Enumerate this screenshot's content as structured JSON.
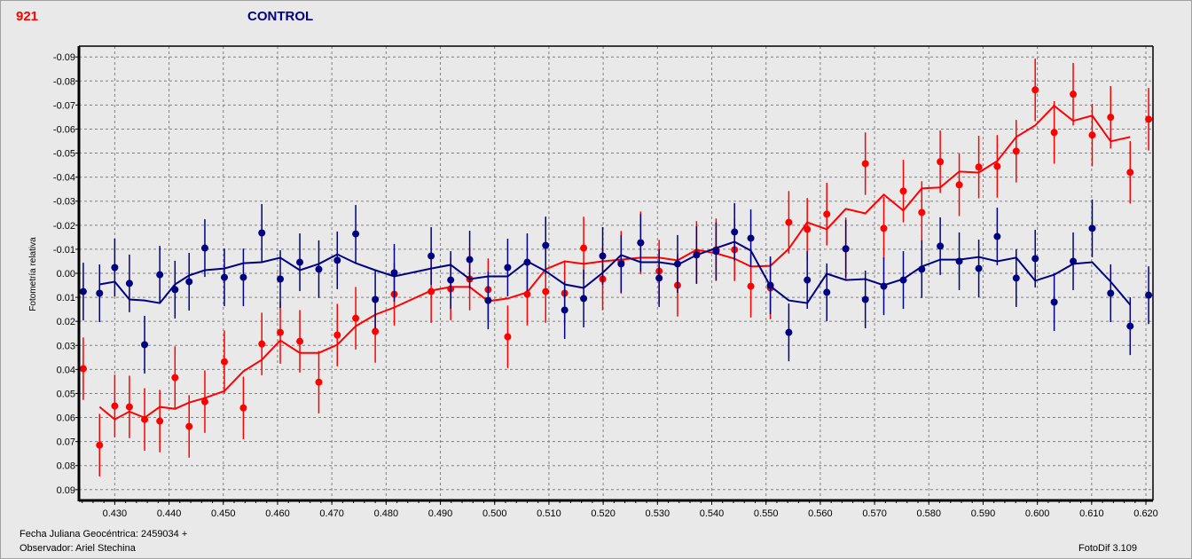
{
  "header": {
    "star_id": "921",
    "title": "CONTROL"
  },
  "footer": {
    "jd_label": "Fecha Juliana Geocéntrica: 2459034 +",
    "observer": "Observador: Ariel Stechina",
    "software": "FotoDif 3.109"
  },
  "colors": {
    "target": "#ff0000",
    "control": "#000080",
    "grid": "#808080"
  },
  "chart_data": {
    "type": "scatter",
    "title": "CONTROL",
    "xlabel": "Fecha Juliana Geocéntrica: 2459034 +",
    "ylabel": "Fotometría relativa",
    "xlim": [
      0.4234,
      0.6213
    ],
    "ylim": [
      0.0945,
      -0.0945
    ],
    "y_inverted": true,
    "grid": true,
    "xticks": [
      "0.430",
      "0.440",
      "0.450",
      "0.460",
      "0.470",
      "0.480",
      "0.490",
      "0.500",
      "0.510",
      "0.520",
      "0.530",
      "0.540",
      "0.550",
      "0.560",
      "0.570",
      "0.580",
      "0.590",
      "0.600",
      "0.610",
      "0.620"
    ],
    "yticks": [
      "-0.09",
      "-0.08",
      "-0.07",
      "-0.06",
      "-0.05",
      "-0.04",
      "-0.03",
      "-0.02",
      "-0.01",
      "0.00",
      "0.01",
      "0.02",
      "0.03",
      "0.04",
      "0.05",
      "0.06",
      "0.07",
      "0.08",
      "0.09"
    ],
    "x": [
      0.4242,
      0.4272,
      0.43,
      0.4327,
      0.4355,
      0.4383,
      0.4411,
      0.4437,
      0.4466,
      0.4502,
      0.4537,
      0.4571,
      0.4605,
      0.4641,
      0.4676,
      0.471,
      0.4744,
      0.478,
      0.4815,
      0.4883,
      0.4919,
      0.4954,
      0.4988,
      0.5024,
      0.506,
      0.5094,
      0.5129,
      0.5164,
      0.5199,
      0.5233,
      0.5269,
      0.5303,
      0.5337,
      0.5372,
      0.5408,
      0.5442,
      0.5472,
      0.5508,
      0.5542,
      0.5576,
      0.5612,
      0.5647,
      0.5683,
      0.5717,
      0.5753,
      0.5787,
      0.5821,
      0.5856,
      0.5892,
      0.5926,
      0.5961,
      0.5996,
      0.6031,
      0.6066,
      0.6101,
      0.6135,
      0.6171,
      0.6205
    ],
    "series": [
      {
        "name": "target",
        "color": "#ff0000",
        "error": 0.013,
        "values": [
          0.0397,
          0.0715,
          0.0552,
          0.0556,
          0.0608,
          0.0615,
          0.0434,
          0.0637,
          0.0534,
          0.0368,
          0.056,
          0.0294,
          0.0246,
          0.0283,
          0.0453,
          0.0257,
          0.0187,
          0.0242,
          0.0087,
          0.0076,
          0.0065,
          0.0024,
          0.0068,
          0.0264,
          0.0087,
          0.0076,
          0.0083,
          -0.0105,
          0.0024,
          -0.0046,
          -0.0127,
          -0.0009,
          0.005,
          -0.0087,
          -0.0098,
          -0.0098,
          0.0054,
          0.0061,
          -0.0212,
          -0.0183,
          -0.0246,
          -0.0102,
          -0.0456,
          -0.0187,
          -0.0342,
          -0.0253,
          -0.0464,
          -0.0368,
          -0.0442,
          -0.0445,
          -0.0508,
          -0.0763,
          -0.0586,
          -0.0745,
          -0.0575,
          -0.0649,
          -0.042,
          -0.0641
        ],
        "smoothed": [
          null,
          0.0556,
          0.0608,
          0.0575,
          0.0601,
          0.0556,
          0.0564,
          0.0538,
          0.0519,
          0.049,
          0.0408,
          0.036,
          0.0279,
          0.0331,
          0.0331,
          0.0297,
          0.022,
          0.0172,
          0.0142,
          0.0072,
          0.0057,
          0.0057,
          0.0116,
          0.0105,
          0.0079,
          -0.0017,
          -0.005,
          -0.0039,
          -0.005,
          -0.0057,
          -0.0065,
          -0.0065,
          -0.0054,
          -0.0098,
          -0.0083,
          -0.0061,
          -0.0028,
          -0.0031,
          -0.0102,
          -0.0212,
          -0.0183,
          -0.0268,
          -0.0249,
          -0.0327,
          -0.0261,
          -0.0353,
          -0.0357,
          -0.0423,
          -0.0419,
          -0.0467,
          -0.0567,
          -0.0615,
          -0.0697,
          -0.0634,
          -0.0656,
          -0.0549,
          -0.0567,
          null
        ]
      },
      {
        "name": "control",
        "color": "#000080",
        "error": 0.012,
        "values": [
          0.0076,
          0.0083,
          -0.0024,
          0.0042,
          0.0297,
          0.0006,
          0.0068,
          0.0035,
          -0.0105,
          0.0017,
          0.0017,
          -0.0168,
          0.0024,
          -0.0046,
          -0.0017,
          -0.0054,
          -0.0164,
          0.0109,
          -0.0002,
          -0.0072,
          0.0028,
          -0.0057,
          0.0113,
          -0.0024,
          -0.0046,
          -0.0116,
          0.0153,
          0.0105,
          -0.0072,
          -0.0039,
          -0.0127,
          0.002,
          -0.0039,
          -0.0076,
          -0.0091,
          -0.0172,
          -0.0146,
          0.005,
          0.0246,
          0.0028,
          0.0079,
          -0.0102,
          0.0109,
          0.0054,
          0.0028,
          -0.0017,
          -0.0113,
          -0.005,
          -0.002,
          -0.0153,
          0.002,
          -0.0061,
          0.012,
          -0.005,
          -0.0187,
          0.0083,
          0.022,
          0.0091
        ],
        "smoothed": [
          null,
          0.0046,
          0.0035,
          0.0109,
          0.0113,
          0.0124,
          0.0046,
          0.0009,
          -0.0013,
          -0.002,
          -0.0042,
          -0.0046,
          -0.0065,
          -0.0013,
          -0.0039,
          -0.0079,
          -0.0042,
          -0.0013,
          0.0013,
          -0.002,
          -0.0035,
          0.0024,
          0.0013,
          0.0013,
          -0.005,
          -0.0009,
          0.0046,
          0.0061,
          -0.0002,
          -0.0076,
          -0.0046,
          -0.0046,
          -0.0035,
          -0.0076,
          -0.0105,
          -0.0131,
          -0.0094,
          0.0054,
          0.0113,
          0.0124,
          0.0002,
          0.0028,
          0.0024,
          0.005,
          0.0024,
          -0.0028,
          -0.0057,
          -0.0057,
          -0.0068,
          -0.005,
          -0.0065,
          0.0031,
          0.0006,
          -0.0039,
          -0.0046,
          0.0035,
          0.0131,
          null
        ]
      }
    ]
  }
}
